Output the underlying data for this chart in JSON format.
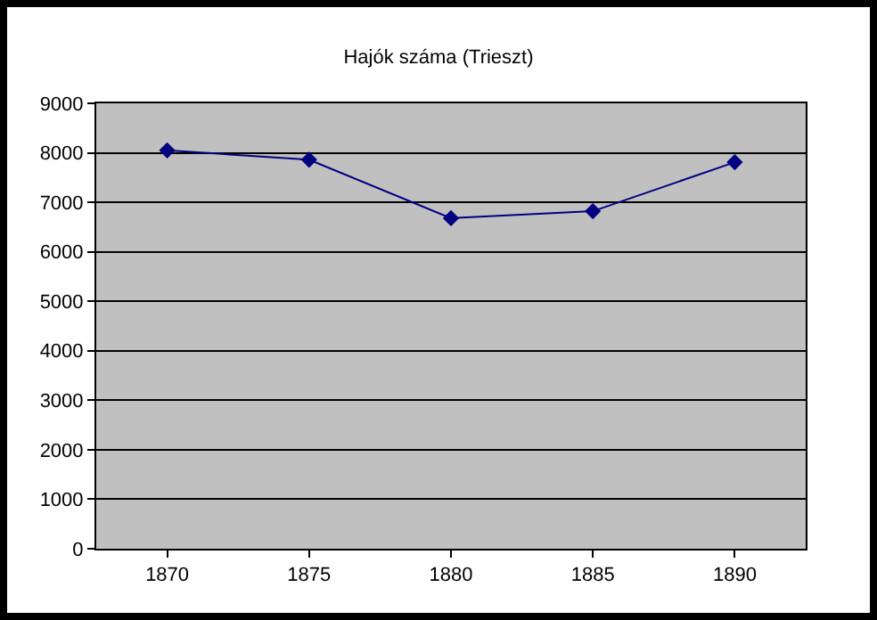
{
  "chart_data": {
    "type": "line",
    "title": "Hajók száma (Trieszt)",
    "categories": [
      "1870",
      "1875",
      "1880",
      "1885",
      "1890"
    ],
    "series": [
      {
        "color": "#000080",
        "values": [
          8050,
          7860,
          6680,
          6820,
          7810
        ]
      }
    ],
    "ylim": [
      0,
      9000
    ],
    "yticks": [
      0,
      1000,
      2000,
      3000,
      4000,
      5000,
      6000,
      7000,
      8000,
      9000
    ],
    "grid": "y",
    "marker": "diamond",
    "line_style": "solid"
  }
}
